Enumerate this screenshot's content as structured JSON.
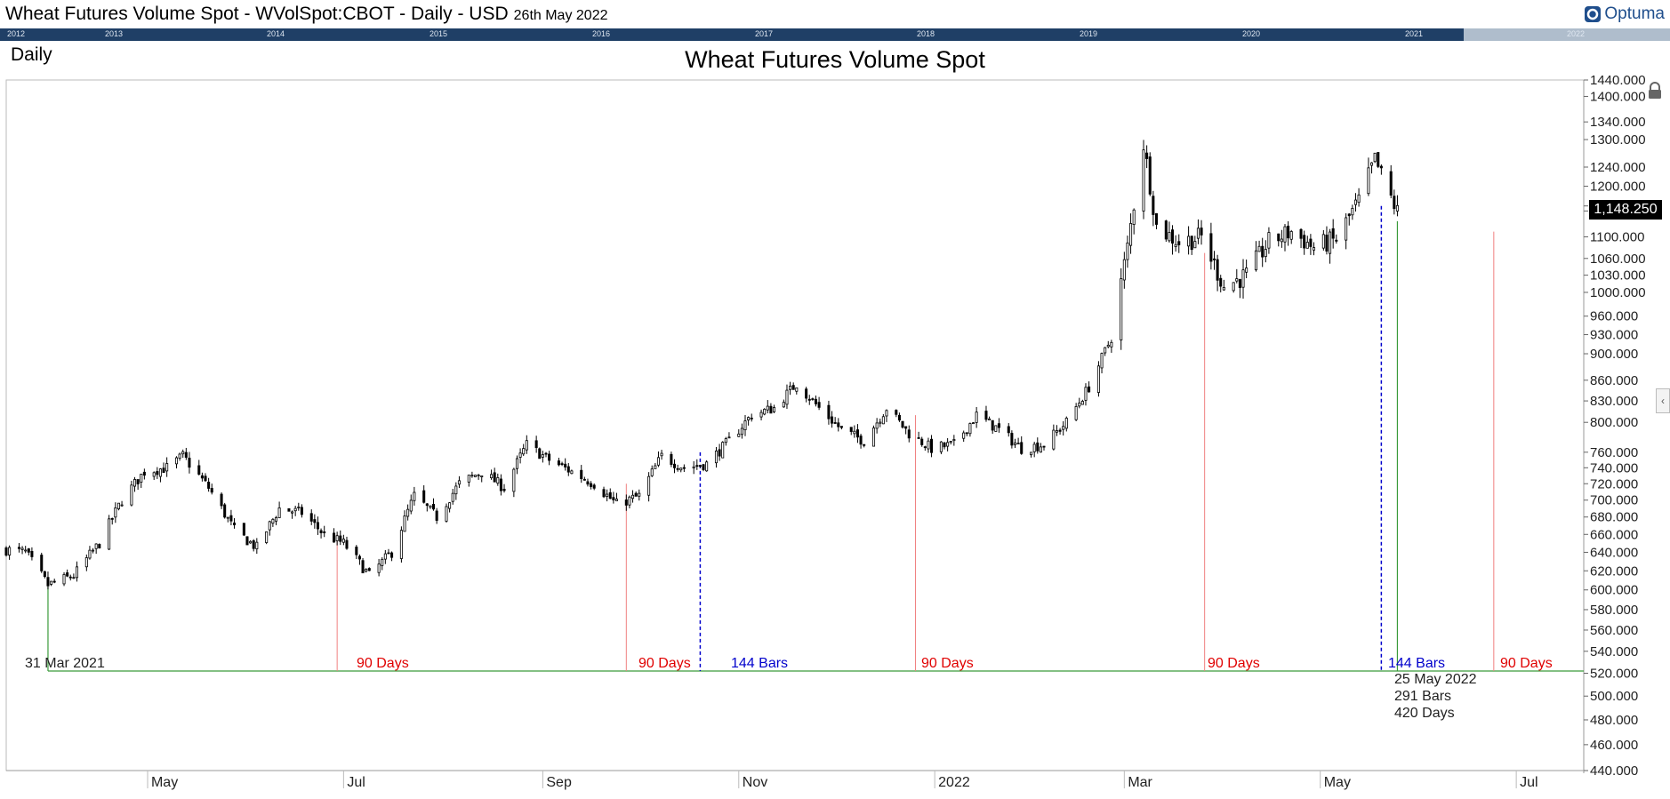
{
  "header": {
    "title": "Wheat Futures Volume Spot - WVolSpot:CBOT - Daily - USD",
    "date": "26th May 2022",
    "logo": "Optuma"
  },
  "navigator": {
    "years": [
      "2012",
      "2013",
      "2014",
      "2015",
      "2016",
      "2017",
      "2018",
      "2019",
      "2020",
      "2021",
      "2022"
    ]
  },
  "period": "Daily",
  "last_price": "1,148.250",
  "annotations": {
    "start_date": "31 Mar 2021",
    "days_label": "90 Days",
    "bars_label": "144 Bars",
    "end_date": "25 May 2022",
    "end_bars": "291 Bars",
    "end_days": "420 Days"
  },
  "colors": {
    "candle": "#000000",
    "days_marker": "#f08080",
    "bars_marker": "#0000cc",
    "range_marker": "#3a9a3a",
    "navigator": "#1f3f66"
  },
  "icons": {
    "lock": "lock-icon",
    "collapse": "chevron-left-icon",
    "logo": "optuma-logo-icon"
  },
  "chart_data": {
    "type": "candlestick",
    "title": "Wheat Futures Volume Spot",
    "x_start": "2021-03-18",
    "x_end": "2022-07-22",
    "y_scale": "log",
    "ylim": [
      440,
      1440
    ],
    "y_ticks": [
      440,
      460,
      480,
      500,
      520,
      540,
      560,
      580,
      600,
      620,
      640,
      660,
      680,
      700,
      720,
      740,
      760,
      800,
      830,
      860,
      900,
      930,
      960,
      1000,
      1030,
      1060,
      1100,
      1150,
      1160,
      1200,
      1240,
      1300,
      1340,
      1400,
      1440
    ],
    "y_tick_labels": [
      "440.000",
      "460.000",
      "480.000",
      "500.000",
      "520.000",
      "540.000",
      "560.000",
      "580.000",
      "600.000",
      "620.000",
      "640.000",
      "660.000",
      "680.000",
      "700.000",
      "720.000",
      "740.000",
      "760.000",
      "800.000",
      "830.000",
      "860.000",
      "900.000",
      "930.000",
      "960.000",
      "1000.000",
      "1030.000",
      "1060.000",
      "1100.000",
      "1150.000",
      "1160.000",
      "1200.000",
      "1240.000",
      "1300.000",
      "1340.000",
      "1400.000",
      "1440.000"
    ],
    "x_ticks": [
      {
        "date": "2021-05-01",
        "label": "May"
      },
      {
        "date": "2021-07-01",
        "label": "Jul"
      },
      {
        "date": "2021-09-01",
        "label": "Sep"
      },
      {
        "date": "2021-11-01",
        "label": "Nov"
      },
      {
        "date": "2022-01-01",
        "label": "2022"
      },
      {
        "date": "2022-03-01",
        "label": "Mar"
      },
      {
        "date": "2022-05-01",
        "label": "May"
      },
      {
        "date": "2022-07-01",
        "label": "Jul"
      }
    ],
    "ohlc_anchors": [
      [
        "2021-03-18",
        643
      ],
      [
        "2021-03-24",
        640
      ],
      [
        "2021-03-31",
        605
      ],
      [
        "2021-04-08",
        615
      ],
      [
        "2021-04-16",
        650
      ],
      [
        "2021-04-23",
        700
      ],
      [
        "2021-04-30",
        735
      ],
      [
        "2021-05-07",
        740
      ],
      [
        "2021-05-12",
        755
      ],
      [
        "2021-05-20",
        715
      ],
      [
        "2021-05-28",
        665
      ],
      [
        "2021-06-04",
        645
      ],
      [
        "2021-06-11",
        690
      ],
      [
        "2021-06-18",
        685
      ],
      [
        "2021-06-25",
        660
      ],
      [
        "2021-07-01",
        650
      ],
      [
        "2021-07-09",
        615
      ],
      [
        "2021-07-16",
        640
      ],
      [
        "2021-07-23",
        705
      ],
      [
        "2021-07-30",
        680
      ],
      [
        "2021-08-06",
        720
      ],
      [
        "2021-08-13",
        735
      ],
      [
        "2021-08-20",
        715
      ],
      [
        "2021-08-27",
        770
      ],
      [
        "2021-09-03",
        750
      ],
      [
        "2021-09-10",
        735
      ],
      [
        "2021-09-17",
        720
      ],
      [
        "2021-09-24",
        695
      ],
      [
        "2021-10-01",
        705
      ],
      [
        "2021-10-08",
        755
      ],
      [
        "2021-10-15",
        740
      ],
      [
        "2021-10-22",
        745
      ],
      [
        "2021-10-29",
        775
      ],
      [
        "2021-11-05",
        810
      ],
      [
        "2021-11-12",
        820
      ],
      [
        "2021-11-19",
        855
      ],
      [
        "2021-11-26",
        820
      ],
      [
        "2021-12-03",
        790
      ],
      [
        "2021-12-10",
        775
      ],
      [
        "2021-12-17",
        820
      ],
      [
        "2021-12-24",
        785
      ],
      [
        "2021-12-31",
        765
      ],
      [
        "2022-01-07",
        770
      ],
      [
        "2022-01-14",
        810
      ],
      [
        "2022-01-21",
        790
      ],
      [
        "2022-01-28",
        765
      ],
      [
        "2022-02-04",
        770
      ],
      [
        "2022-02-11",
        800
      ],
      [
        "2022-02-18",
        850
      ],
      [
        "2022-02-25",
        925
      ],
      [
        "2022-03-02",
        1080
      ],
      [
        "2022-03-07",
        1290
      ],
      [
        "2022-03-11",
        1120
      ],
      [
        "2022-03-18",
        1090
      ],
      [
        "2022-03-25",
        1100
      ],
      [
        "2022-04-01",
        1010
      ],
      [
        "2022-04-08",
        1030
      ],
      [
        "2022-04-15",
        1090
      ],
      [
        "2022-04-22",
        1110
      ],
      [
        "2022-04-29",
        1080
      ],
      [
        "2022-05-06",
        1095
      ],
      [
        "2022-05-13",
        1170
      ],
      [
        "2022-05-18",
        1255
      ],
      [
        "2022-05-22",
        1190
      ],
      [
        "2022-05-25",
        1148
      ]
    ],
    "day_markers": [
      "2021-06-29",
      "2021-09-27",
      "2021-12-26",
      "2022-03-26",
      "2022-06-24"
    ],
    "bar_markers": [
      "2021-10-20",
      "2022-05-20"
    ],
    "range": {
      "start": "2021-03-31",
      "end": "2022-05-25",
      "bars": 291,
      "days": 420
    },
    "last": 1148.25
  }
}
